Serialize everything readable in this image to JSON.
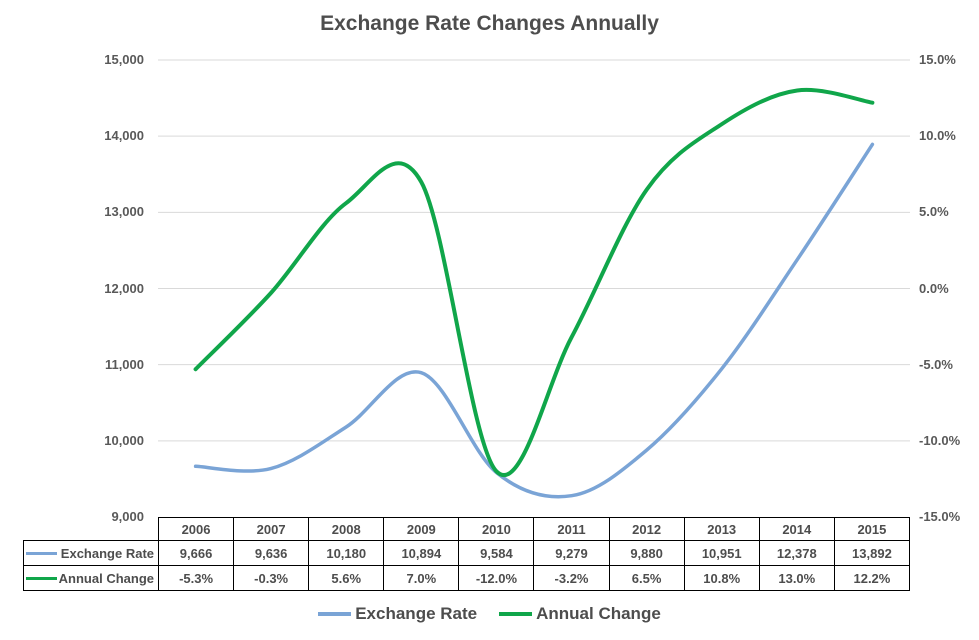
{
  "title": "Exchange Rate Changes Annually",
  "colors": {
    "exchange_rate": "#7AA4D6",
    "annual_change": "#10A64A",
    "grid": "#D9D9D9",
    "axis_text": "#595959",
    "table_text": "#4D4D4D",
    "table_border": "#000000"
  },
  "chart_data": {
    "type": "line",
    "smooth": true,
    "grid": true,
    "legend_position": "bottom",
    "title": "Exchange Rate Changes Annually",
    "categories": [
      "2006",
      "2007",
      "2008",
      "2009",
      "2010",
      "2011",
      "2012",
      "2013",
      "2014",
      "2015"
    ],
    "series": [
      {
        "name": "Exchange Rate",
        "axis": "left",
        "color_key": "exchange_rate",
        "values": [
          9666,
          9636,
          10180,
          10894,
          9584,
          9279,
          9880,
          10951,
          12378,
          13892
        ],
        "labels": [
          "9,666",
          "9,636",
          "10,180",
          "10,894",
          "9,584",
          "9,279",
          "9,880",
          "10,951",
          "12,378",
          "13,892"
        ]
      },
      {
        "name": "Annual Change",
        "axis": "right",
        "color_key": "annual_change",
        "values": [
          -5.3,
          -0.3,
          5.6,
          7.0,
          -12.0,
          -3.2,
          6.5,
          10.8,
          13.0,
          12.2
        ],
        "labels": [
          "-5.3%",
          "-0.3%",
          "5.6%",
          "7.0%",
          "-12.0%",
          "-3.2%",
          "6.5%",
          "10.8%",
          "13.0%",
          "12.2%"
        ]
      }
    ],
    "left_axis": {
      "min": 9000,
      "max": 15000,
      "ticks": [
        "15,000",
        "14,000",
        "13,000",
        "12,000",
        "11,000",
        "10,000",
        "9,000"
      ]
    },
    "right_axis": {
      "min": -15,
      "max": 15,
      "ticks": [
        "15.0%",
        "10.0%",
        "5.0%",
        "0.0%",
        "-5.0%",
        "-10.0%",
        "-15.0%"
      ]
    }
  },
  "legend": {
    "items": [
      {
        "label": "Exchange Rate",
        "color_key": "exchange_rate"
      },
      {
        "label": "Annual Change",
        "color_key": "annual_change"
      }
    ]
  }
}
